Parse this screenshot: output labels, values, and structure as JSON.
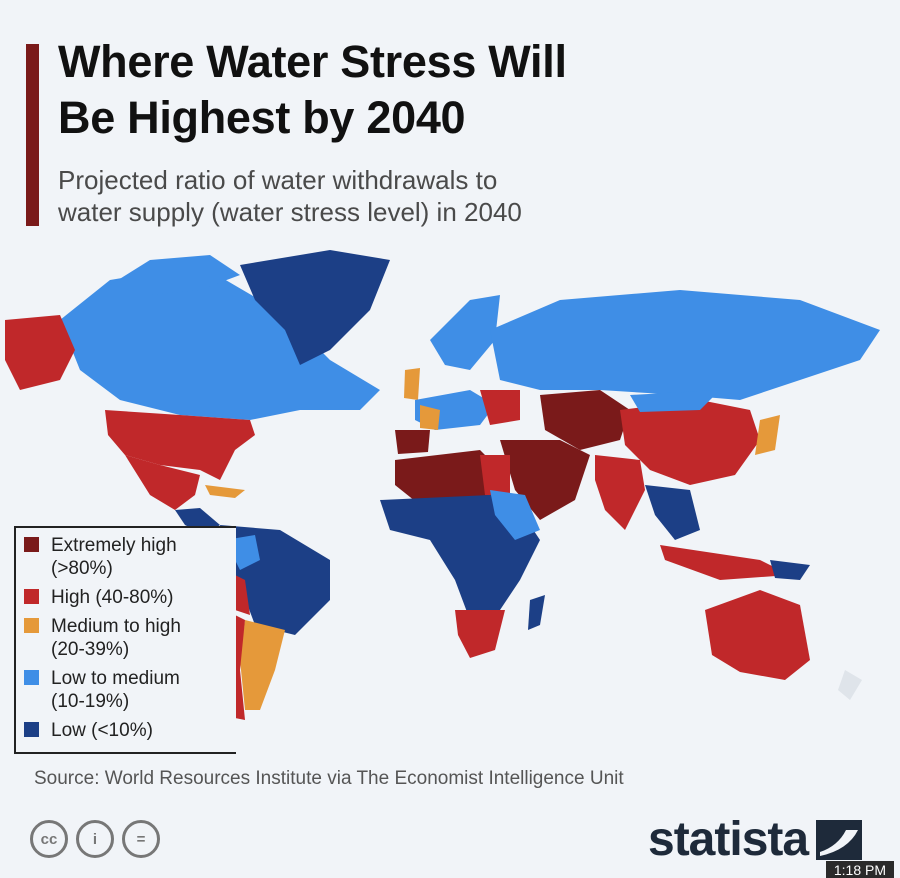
{
  "header": {
    "title_line1": "Where Water Stress Will",
    "title_line2": "Be Highest by 2040",
    "subtitle_line1": "Projected ratio of water withdrawals to",
    "subtitle_line2": "water supply (water stress level) in 2040"
  },
  "legend": [
    {
      "line1": "Extremely high",
      "line2": "(>80%)",
      "color": "#7a1a1a"
    },
    {
      "line1": "High (40-80%)",
      "line2": "",
      "color": "#c0282a"
    },
    {
      "line1": "Medium to high",
      "line2": "(20-39%)",
      "color": "#e5993a"
    },
    {
      "line1": "Low to medium",
      "line2": "(10-19%)",
      "color": "#3f8ee6"
    },
    {
      "line1": "Low (<10%)",
      "line2": "",
      "color": "#1c3f86"
    }
  ],
  "footer": {
    "source": "Source: World Resources Institute via The Economist Intelligence Unit",
    "brand": "statista",
    "cc_labels": [
      "cc",
      "i",
      "="
    ],
    "time": "1:18 PM"
  },
  "colors": {
    "extremely_high": "#7a1a1a",
    "high": "#c0282a",
    "medium_high": "#e5993a",
    "low_medium": "#3f8ee6",
    "low": "#1c3f86",
    "no_data": "#dfe4ea"
  }
}
